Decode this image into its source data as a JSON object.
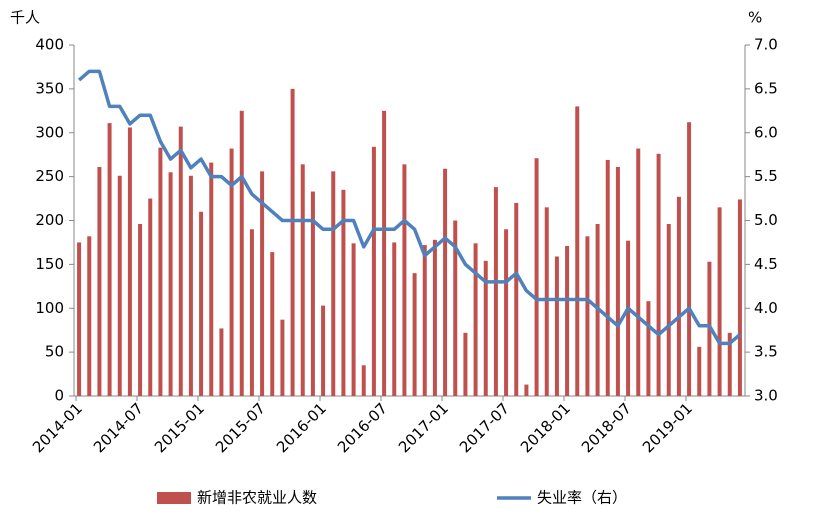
{
  "chart_data": {
    "type": "bar_line",
    "left_axis_label": "千人",
    "right_axis_label": "%",
    "categories": [
      "2014-01",
      null,
      null,
      null,
      null,
      null,
      "2014-07",
      null,
      null,
      null,
      null,
      null,
      "2015-01",
      null,
      null,
      null,
      null,
      null,
      "2015-07",
      null,
      null,
      null,
      null,
      null,
      "2016-01",
      null,
      null,
      null,
      null,
      null,
      "2016-07",
      null,
      null,
      null,
      null,
      null,
      "2017-01",
      null,
      null,
      null,
      null,
      null,
      "2017-07",
      null,
      null,
      null,
      null,
      null,
      "2018-01",
      null,
      null,
      null,
      null,
      null,
      "2018-07",
      null,
      null,
      null,
      null,
      null,
      "2019-01",
      null,
      null,
      null,
      null,
      null
    ],
    "series": [
      {
        "name": "新增非农就业人数",
        "color": "#c0504d",
        "kind": "bar",
        "axis": "y",
        "values": [
          175,
          182,
          261,
          311,
          251,
          306,
          196,
          225,
          283,
          255,
          307,
          251,
          210,
          266,
          77,
          282,
          325,
          190,
          256,
          164,
          87,
          350,
          264,
          233,
          103,
          256,
          235,
          174,
          35,
          284,
          325,
          175,
          264,
          140,
          172,
          178,
          259,
          200,
          72,
          174,
          154,
          238,
          190,
          220,
          13,
          271,
          215,
          159,
          171,
          330,
          182,
          196,
          269,
          261,
          177,
          282,
          108,
          276,
          196,
          227,
          312,
          56,
          153,
          215,
          72,
          224
        ]
      },
      {
        "name": "失业率（右）",
        "color": "#4f81bd",
        "kind": "line",
        "axis": "y2",
        "values": [
          6.6,
          6.7,
          6.7,
          6.3,
          6.3,
          6.1,
          6.2,
          6.2,
          5.9,
          5.7,
          5.8,
          5.6,
          5.7,
          5.5,
          5.5,
          5.4,
          5.5,
          5.3,
          5.2,
          5.1,
          5.0,
          5.0,
          5.0,
          5.0,
          4.9,
          4.9,
          5.0,
          5.0,
          4.7,
          4.9,
          4.9,
          4.9,
          5.0,
          4.9,
          4.6,
          4.7,
          4.8,
          4.7,
          4.5,
          4.4,
          4.3,
          4.3,
          4.3,
          4.4,
          4.2,
          4.1,
          4.1,
          4.1,
          4.1,
          4.1,
          4.1,
          4.0,
          3.9,
          3.8,
          4.0,
          3.9,
          3.8,
          3.7,
          3.8,
          3.9,
          4.0,
          3.8,
          3.8,
          3.6,
          3.6,
          3.7
        ]
      }
    ],
    "ylim": [
      0,
      400
    ],
    "yticks": [
      0,
      50,
      100,
      150,
      200,
      250,
      300,
      350,
      400
    ],
    "y2lim": [
      3,
      7
    ],
    "y2ticks": [
      {
        "value": 3,
        "label": "3.0"
      },
      {
        "value": 3.5,
        "label": "3.5"
      },
      {
        "value": 4,
        "label": "4.0"
      },
      {
        "value": 4.5,
        "label": "4.5"
      },
      {
        "value": 5,
        "label": "5.0"
      },
      {
        "value": 5.5,
        "label": "5.5"
      },
      {
        "value": 6,
        "label": "6.0"
      },
      {
        "value": 6.5,
        "label": "6.5"
      },
      {
        "value": 7,
        "label": "7.0"
      }
    ],
    "legend": "bottom"
  }
}
